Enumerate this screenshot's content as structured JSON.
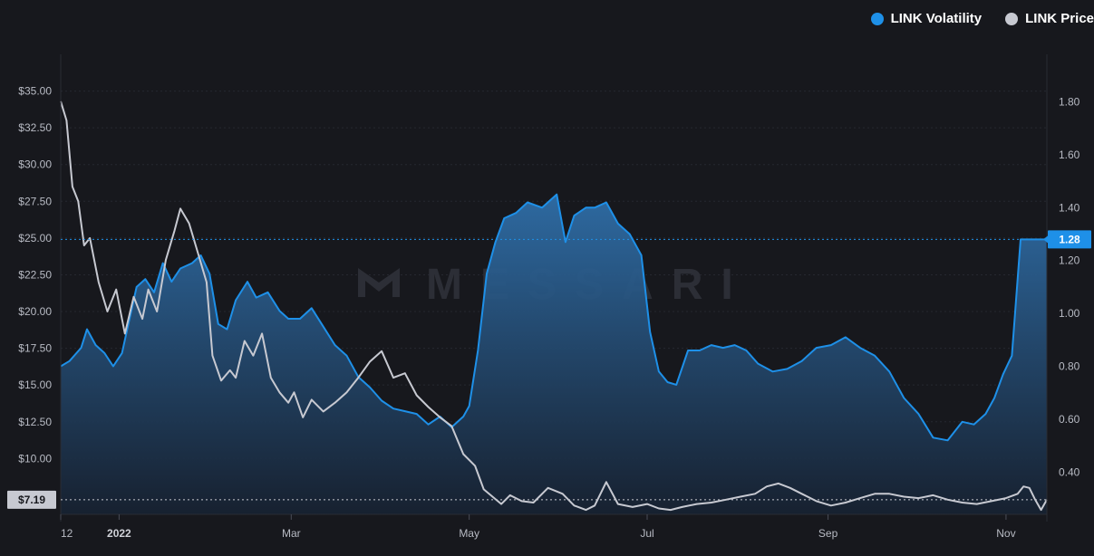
{
  "legend": [
    {
      "label": "LINK Volatility",
      "color": "#1e90e8"
    },
    {
      "label": "LINK Price",
      "color": "#c7c9d1"
    }
  ],
  "watermark": "MESSARI",
  "chart_data": {
    "type": "line",
    "title": "",
    "x_ticks": [
      "12",
      "2022",
      "Mar",
      "May",
      "Jul",
      "Sep",
      "Nov"
    ],
    "y_left": {
      "label": "",
      "ticks": [
        "$10.00",
        "$12.50",
        "$15.00",
        "$17.50",
        "$20.00",
        "$22.50",
        "$25.00",
        "$27.50",
        "$30.00",
        "$32.50",
        "$35.00"
      ],
      "range": [
        6.2,
        37.5
      ],
      "current_label": "$7.19"
    },
    "y_right": {
      "label": "",
      "ticks": [
        "0.40",
        "0.60",
        "0.80",
        "1.00",
        "1.20",
        "1.40",
        "1.60",
        "1.80"
      ],
      "range": [
        0.24,
        1.98
      ],
      "current_label": "1.28"
    },
    "x_range": [
      "2021-12-12",
      "2022-11-15"
    ],
    "grid": true,
    "legend_position": "top-right",
    "series": [
      {
        "name": "LINK Volatility",
        "axis": "right",
        "color": "#1e90e8",
        "fill": "area",
        "x": [
          "2021-12-12",
          "2021-12-15",
          "2021-12-19",
          "2021-12-21",
          "2021-12-24",
          "2021-12-27",
          "2021-12-30",
          "2022-01-02",
          "2022-01-04",
          "2022-01-07",
          "2022-01-10",
          "2022-01-13",
          "2022-01-16",
          "2022-01-19",
          "2022-01-22",
          "2022-01-26",
          "2022-01-29",
          "2022-02-01",
          "2022-02-04",
          "2022-02-07",
          "2022-02-10",
          "2022-02-14",
          "2022-02-17",
          "2022-02-21",
          "2022-02-25",
          "2022-02-28",
          "2022-03-04",
          "2022-03-08",
          "2022-03-12",
          "2022-03-16",
          "2022-03-20",
          "2022-03-24",
          "2022-03-28",
          "2022-04-01",
          "2022-04-05",
          "2022-04-09",
          "2022-04-13",
          "2022-04-17",
          "2022-04-21",
          "2022-04-25",
          "2022-04-29",
          "2022-05-01",
          "2022-05-04",
          "2022-05-07",
          "2022-05-10",
          "2022-05-13",
          "2022-05-17",
          "2022-05-21",
          "2022-05-26",
          "2022-05-31",
          "2022-06-03",
          "2022-06-06",
          "2022-06-10",
          "2022-06-13",
          "2022-06-17",
          "2022-06-21",
          "2022-06-25",
          "2022-06-29",
          "2022-07-02",
          "2022-07-05",
          "2022-07-08",
          "2022-07-11",
          "2022-07-15",
          "2022-07-19",
          "2022-07-23",
          "2022-07-27",
          "2022-07-31",
          "2022-08-04",
          "2022-08-08",
          "2022-08-13",
          "2022-08-18",
          "2022-08-23",
          "2022-08-28",
          "2022-09-02",
          "2022-09-07",
          "2022-09-12",
          "2022-09-17",
          "2022-09-22",
          "2022-09-27",
          "2022-10-02",
          "2022-10-07",
          "2022-10-12",
          "2022-10-17",
          "2022-10-21",
          "2022-10-25",
          "2022-10-28",
          "2022-10-31",
          "2022-11-03",
          "2022-11-06",
          "2022-11-09",
          "2022-11-11",
          "2022-11-13",
          "2022-11-15"
        ],
        "y": [
          0.8,
          0.82,
          0.87,
          0.94,
          0.88,
          0.85,
          0.8,
          0.85,
          0.95,
          1.1,
          1.13,
          1.08,
          1.19,
          1.12,
          1.17,
          1.19,
          1.22,
          1.15,
          0.96,
          0.94,
          1.05,
          1.12,
          1.06,
          1.08,
          1.01,
          0.98,
          0.98,
          1.02,
          0.95,
          0.88,
          0.84,
          0.76,
          0.72,
          0.67,
          0.64,
          0.63,
          0.62,
          0.58,
          0.61,
          0.57,
          0.61,
          0.65,
          0.86,
          1.15,
          1.27,
          1.36,
          1.38,
          1.42,
          1.4,
          1.45,
          1.27,
          1.37,
          1.4,
          1.4,
          1.42,
          1.34,
          1.3,
          1.22,
          0.93,
          0.78,
          0.74,
          0.73,
          0.86,
          0.86,
          0.88,
          0.87,
          0.88,
          0.86,
          0.81,
          0.78,
          0.79,
          0.82,
          0.87,
          0.88,
          0.91,
          0.87,
          0.84,
          0.78,
          0.68,
          0.62,
          0.53,
          0.52,
          0.59,
          0.58,
          0.62,
          0.68,
          0.77,
          0.84,
          1.28,
          1.28,
          1.28,
          1.28,
          1.28
        ]
      },
      {
        "name": "LINK Price",
        "axis": "left",
        "color": "#c7c9d1",
        "x": [
          "2021-12-12",
          "2021-12-14",
          "2021-12-16",
          "2021-12-18",
          "2021-12-20",
          "2021-12-22",
          "2021-12-25",
          "2021-12-28",
          "2021-12-31",
          "2022-01-03",
          "2022-01-06",
          "2022-01-09",
          "2022-01-11",
          "2022-01-14",
          "2022-01-17",
          "2022-01-20",
          "2022-01-22",
          "2022-01-25",
          "2022-01-28",
          "2022-01-31",
          "2022-02-02",
          "2022-02-05",
          "2022-02-08",
          "2022-02-10",
          "2022-02-13",
          "2022-02-16",
          "2022-02-19",
          "2022-02-22",
          "2022-02-25",
          "2022-02-28",
          "2022-03-02",
          "2022-03-05",
          "2022-03-08",
          "2022-03-12",
          "2022-03-16",
          "2022-03-20",
          "2022-03-24",
          "2022-03-28",
          "2022-04-01",
          "2022-04-05",
          "2022-04-09",
          "2022-04-13",
          "2022-04-17",
          "2022-04-21",
          "2022-04-25",
          "2022-04-29",
          "2022-05-03",
          "2022-05-06",
          "2022-05-09",
          "2022-05-12",
          "2022-05-15",
          "2022-05-19",
          "2022-05-23",
          "2022-05-28",
          "2022-06-02",
          "2022-06-06",
          "2022-06-10",
          "2022-06-13",
          "2022-06-17",
          "2022-06-21",
          "2022-06-26",
          "2022-07-01",
          "2022-07-05",
          "2022-07-09",
          "2022-07-13",
          "2022-07-18",
          "2022-07-23",
          "2022-07-28",
          "2022-08-02",
          "2022-08-07",
          "2022-08-11",
          "2022-08-15",
          "2022-08-19",
          "2022-08-23",
          "2022-08-28",
          "2022-09-02",
          "2022-09-07",
          "2022-09-12",
          "2022-09-17",
          "2022-09-22",
          "2022-09-27",
          "2022-10-02",
          "2022-10-07",
          "2022-10-12",
          "2022-10-17",
          "2022-10-22",
          "2022-10-27",
          "2022-11-01",
          "2022-11-05",
          "2022-11-07",
          "2022-11-09",
          "2022-11-11",
          "2022-11-13",
          "2022-11-15"
        ],
        "y": [
          34.3,
          33.0,
          28.5,
          27.5,
          24.5,
          25.0,
          22.0,
          20.0,
          21.5,
          18.5,
          21.0,
          19.5,
          21.5,
          20.0,
          23.5,
          25.5,
          27.0,
          26.0,
          24.0,
          22.0,
          17.0,
          15.3,
          16.0,
          15.5,
          18.0,
          17.0,
          18.5,
          15.5,
          14.5,
          13.8,
          14.5,
          12.8,
          14.0,
          13.2,
          13.8,
          14.5,
          15.5,
          16.6,
          17.3,
          15.5,
          15.8,
          14.3,
          13.5,
          12.8,
          12.2,
          10.3,
          9.5,
          7.9,
          7.4,
          6.9,
          7.5,
          7.1,
          7.0,
          8.0,
          7.6,
          6.8,
          6.5,
          6.8,
          8.4,
          6.9,
          6.7,
          6.9,
          6.6,
          6.5,
          6.7,
          6.9,
          7.0,
          7.2,
          7.4,
          7.6,
          8.1,
          8.3,
          8.0,
          7.6,
          7.1,
          6.8,
          7.0,
          7.3,
          7.6,
          7.6,
          7.4,
          7.3,
          7.5,
          7.2,
          7.0,
          6.9,
          7.1,
          7.3,
          7.6,
          8.1,
          8.0,
          7.2,
          6.5,
          7.2
        ]
      }
    ]
  }
}
